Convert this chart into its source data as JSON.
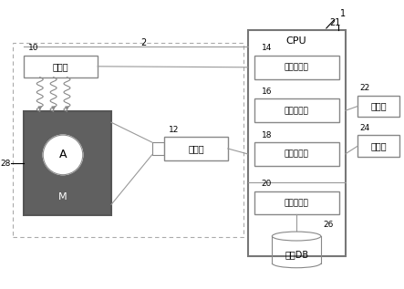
{
  "bg_color": "#ffffff",
  "label_1": "1",
  "label_2": "2",
  "label_10": "10",
  "label_12": "12",
  "label_14": "14",
  "label_16": "16",
  "label_18": "18",
  "label_20": "20",
  "label_21": "21",
  "label_22": "22",
  "label_24": "24",
  "label_26": "26",
  "label_28": "28",
  "box_shoumei": "照明部",
  "box_camera": "摄像部",
  "box_cpu": "CPU",
  "box_14": "摄像控制部",
  "box_16": "图像生成部",
  "box_18": "处理控制部",
  "box_20": "药剂识别部",
  "box_22": "显示部",
  "box_24": "操作部",
  "box_db": "药剂DB",
  "circle_label": "A",
  "circle_sub": "M",
  "line_color": "#999999",
  "dark_box_color": "#555555",
  "edge_color": "#888888"
}
